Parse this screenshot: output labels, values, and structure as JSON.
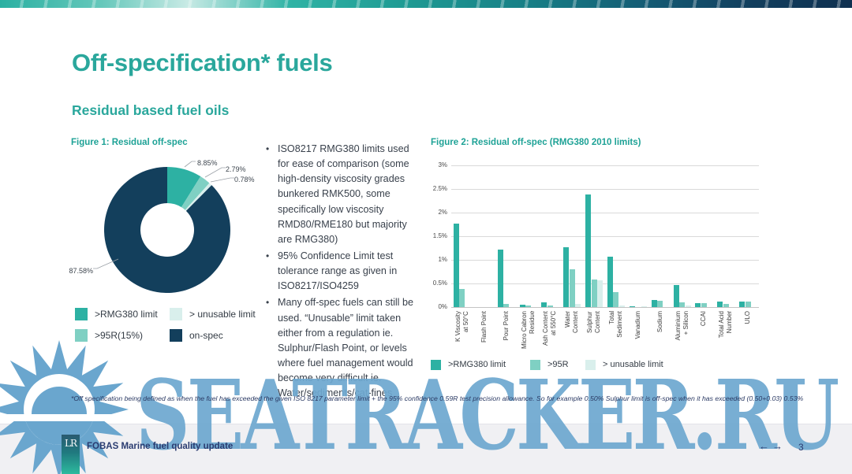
{
  "slide": {
    "title": "Off-specification* fuels",
    "subtitle": "Residual based fuel oils",
    "footnote": "*Off specification being defined as when the fuel has exceeded the given ISO 8217 parameter limit + the 95% confidence 0.59R test precision allowance. So for example 0.50% Sulphur limit is off-spec when it has exceeded (0.50+0.03) 0.53%"
  },
  "bullets": [
    "ISO8217 RMG380 limits used for ease of comparison (some high-density viscosity grades bunkered RMK500, some specifically low viscosity RMD80/RME180 but majority are RMG380)",
    "95% Confidence Limit test tolerance range as given in ISO8217/ISO4259",
    "Many off-spec fuels can still be used. “Unusable” limit taken either from a regulation ie. Sulphur/Flash Point, or levels where fuel management would become very difficult ie. Water/sediments/cat-fines"
  ],
  "chart_data": [
    {
      "type": "pie",
      "donut": true,
      "title": "Figure 1: Residual off-spec",
      "slices": [
        {
          "label": ">RMG380 limit",
          "value": 8.85,
          "display": "8.85%",
          "color": "#2db1a3"
        },
        {
          "label": ">95R(15%)",
          "value": 2.79,
          "display": "2.79%",
          "color": "#7fd0c3"
        },
        {
          "label": "> unusable limit",
          "value": 0.78,
          "display": "0.78%",
          "color": "#d9efec"
        },
        {
          "label": "on-spec",
          "value": 87.58,
          "display": "87.58%",
          "color": "#133f5c"
        }
      ],
      "legend_order": [
        ">RMG380 limit",
        "> unusable limit",
        ">95R(15%)",
        "on-spec"
      ]
    },
    {
      "type": "bar",
      "title": "Figure 2: Residual off-spec (RMG380 2010 limits)",
      "yticks": [
        "0%",
        "0.5%",
        "1%",
        "1.5%",
        "2%",
        "2.5%",
        "3%"
      ],
      "ylim": [
        0,
        3
      ],
      "grid": true,
      "legend_position": "bottom",
      "categories": [
        [
          "K Viscosity",
          "at 50°C"
        ],
        [
          "Flash Point"
        ],
        [
          "Pour Point"
        ],
        [
          "Micro Cabron",
          "Residue"
        ],
        [
          "Ash Content",
          "at 550°C"
        ],
        [
          "Water",
          "Content"
        ],
        [
          "Sulphur",
          "Content"
        ],
        [
          "Total",
          "Sediment"
        ],
        [
          "Vanadium"
        ],
        [
          "Sodium"
        ],
        [
          "Aluminium",
          "+ Silicon"
        ],
        [
          "CCAI"
        ],
        [
          "Total Acid",
          "Number"
        ],
        [
          "ULO"
        ]
      ],
      "series": [
        {
          "name": ">RMG380 limit",
          "color": "#2db1a3",
          "values": [
            1.76,
            0,
            1.22,
            0.05,
            0.1,
            1.27,
            2.39,
            1.07,
            0.02,
            0.15,
            0.46,
            0.08,
            0.11,
            0.11
          ]
        },
        {
          "name": ">95R",
          "color": "#7fd0c3",
          "values": [
            0.38,
            0,
            0.06,
            0.03,
            0.04,
            0.8,
            0.58,
            0.31,
            0,
            0.13,
            0.1,
            0.08,
            0.06,
            0.11
          ]
        },
        {
          "name": "> unusable limit",
          "color": "#d9efec",
          "values": [
            0,
            0,
            0,
            0,
            0,
            0.06,
            0.57,
            0.03,
            0.01,
            0,
            0.04,
            0,
            0,
            0
          ]
        }
      ]
    }
  ],
  "watermark": {
    "text": "SEATRACKER.RU"
  },
  "footer": {
    "logo": "LR",
    "text": "FOBAS Marine fuel quality update",
    "prev": "←",
    "next": "→",
    "page": "3"
  }
}
